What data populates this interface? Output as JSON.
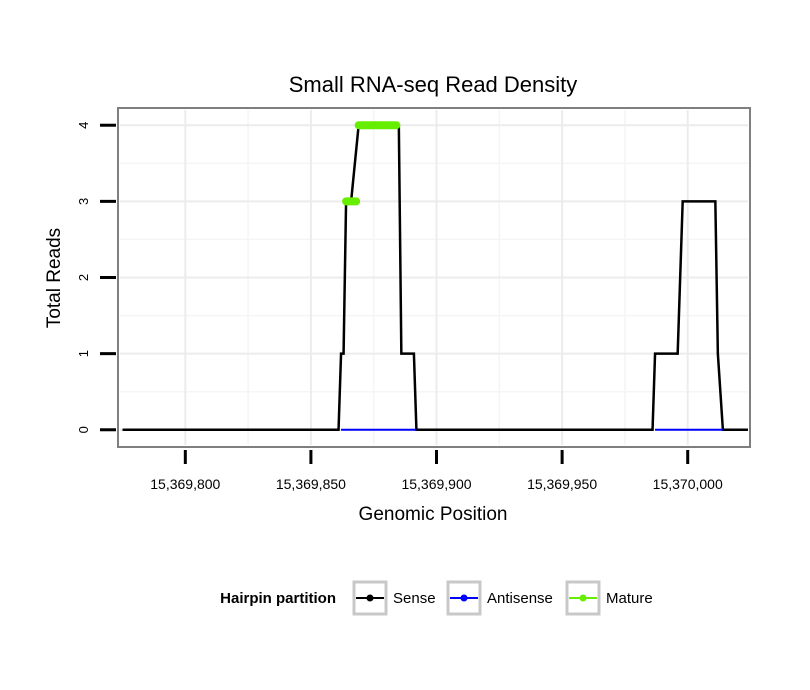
{
  "chart_data": {
    "type": "line",
    "title": "Small RNA-seq Read Density",
    "xlabel": "Genomic Position",
    "ylabel": "Total Reads",
    "xlim": [
      15369774,
      15370024
    ],
    "ylim": [
      -0.2,
      4.2
    ],
    "x_ticks": [
      15369800,
      15369850,
      15369900,
      15369950,
      15370000
    ],
    "x_tick_labels": [
      "15,369,800",
      "15,369,850",
      "15,369,900",
      "15,369,950",
      "15,370,000"
    ],
    "y_ticks": [
      0,
      1,
      2,
      3,
      4
    ],
    "y_tick_labels": [
      "0",
      "1",
      "2",
      "3",
      "4"
    ],
    "grid": true,
    "legend": {
      "title": "Hairpin partition",
      "position": "bottom",
      "entries": [
        "Sense",
        "Antisense",
        "Mature"
      ]
    },
    "series": [
      {
        "name": "Sense",
        "color": "#000000",
        "x": [
          15369775,
          15369861,
          15369862,
          15369863,
          15369864,
          15369866,
          15369869,
          15369884,
          15369885,
          15369886,
          15369891,
          15369892,
          15369986,
          15369987,
          15369996,
          15369998,
          15370011,
          15370012,
          15370014,
          15370024
        ],
        "y": [
          0,
          0,
          1,
          1,
          3,
          3,
          4,
          4,
          4,
          1,
          1,
          0,
          0,
          1,
          1,
          3,
          3,
          1,
          0,
          0
        ]
      },
      {
        "name": "Antisense",
        "color": "#0000ff",
        "x": [
          15369862,
          15369892,
          15369987,
          15370014
        ],
        "y": [
          0,
          0,
          0,
          0
        ],
        "segments": [
          [
            0,
            1
          ],
          [
            2,
            3
          ]
        ]
      },
      {
        "name": "Mature",
        "color": "#66ee00",
        "x": [
          15369864,
          15369868,
          15369869,
          15369884
        ],
        "y": [
          3,
          3,
          4,
          4
        ],
        "segments": [
          [
            0,
            1
          ],
          [
            2,
            3
          ]
        ]
      }
    ]
  }
}
